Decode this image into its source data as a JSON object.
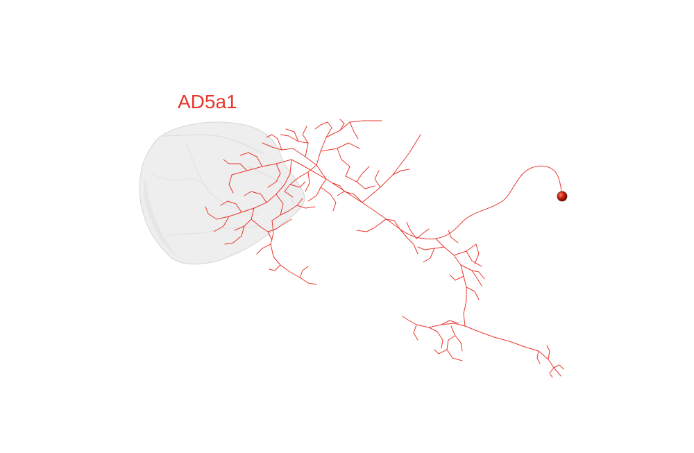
{
  "neuron": {
    "label": "AD5a1",
    "color": "#e8352a",
    "soma_color": "#c0200f"
  },
  "neuropil": {
    "fill": "#eeeeee",
    "edge": "#d4d4d4"
  }
}
